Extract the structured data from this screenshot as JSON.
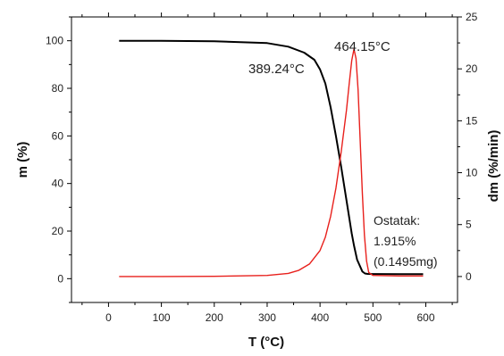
{
  "chart_data": {
    "type": "line",
    "xlabel": "T (°C)",
    "ylabel_left": "m (%)",
    "ylabel_right": "dm (%/min)",
    "xlim": [
      -70,
      660
    ],
    "ylim_left": [
      -10,
      110
    ],
    "ylim_right": [
      -2.5,
      25
    ],
    "xticks": [
      0,
      100,
      200,
      300,
      400,
      500,
      600
    ],
    "yticks_left": [
      0,
      20,
      40,
      60,
      80,
      100
    ],
    "yticks_right": [
      0,
      5,
      10,
      15,
      20,
      25
    ],
    "grid": false,
    "legend": "none",
    "series": [
      {
        "axis": "left",
        "color": "#000000",
        "x": [
          20,
          100,
          200,
          300,
          340,
          370,
          389.24,
          400,
          410,
          420,
          430,
          440,
          450,
          460,
          464.15,
          470,
          480,
          485,
          490,
          500,
          550,
          595
        ],
        "y": [
          100,
          100,
          99.8,
          99,
          97.5,
          95,
          92,
          88,
          82,
          72,
          60,
          47,
          33,
          19,
          14,
          8,
          3,
          2.2,
          2,
          1.95,
          1.92,
          1.915
        ]
      },
      {
        "axis": "right",
        "color": "#e8201c",
        "x": [
          20,
          100,
          200,
          300,
          340,
          360,
          380,
          400,
          410,
          420,
          430,
          440,
          450,
          455,
          460,
          464.15,
          468,
          472,
          476,
          480,
          484,
          488,
          492,
          500,
          550,
          595
        ],
        "y": [
          0,
          0,
          0.02,
          0.1,
          0.3,
          0.6,
          1.2,
          2.5,
          3.8,
          5.8,
          8.5,
          12,
          16,
          18.5,
          20.8,
          21.9,
          21,
          18,
          13,
          8,
          4,
          1.5,
          0.4,
          0.1,
          0.05,
          0.05
        ]
      }
    ],
    "annotations": {
      "onset": "389.24°C",
      "peak": "464.15°C",
      "residue_line1": "Ostatak:",
      "residue_line2": "1.915%",
      "residue_line3": "(0.1495mg)"
    }
  }
}
